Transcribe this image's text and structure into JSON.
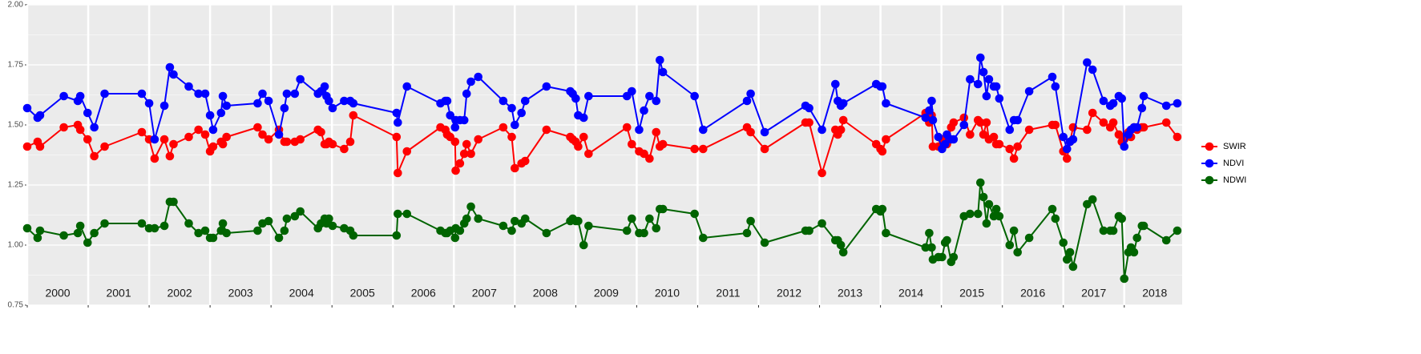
{
  "chart_data": {
    "type": "line",
    "x": [
      2000.0,
      2000.17,
      2000.21,
      2000.6,
      2000.83,
      2000.87,
      2000.99,
      2001.1,
      2001.27,
      2001.88,
      2002.0,
      2002.09,
      2002.25,
      2002.34,
      2002.4,
      2002.65,
      2002.81,
      2002.92,
      2003.0,
      2003.05,
      2003.18,
      2003.21,
      2003.27,
      2003.78,
      2003.86,
      2003.96,
      2004.13,
      2004.22,
      2004.26,
      2004.39,
      2004.48,
      2004.77,
      2004.82,
      2004.88,
      2004.91,
      2004.95,
      2005.01,
      2005.2,
      2005.3,
      2005.35,
      2006.06,
      2006.08,
      2006.23,
      2006.78,
      2006.86,
      2006.89,
      2006.94,
      2007.02,
      2007.03,
      2007.1,
      2007.17,
      2007.21,
      2007.28,
      2007.4,
      2007.81,
      2007.95,
      2008.0,
      2008.11,
      2008.17,
      2008.52,
      2008.91,
      2008.95,
      2009.0,
      2009.04,
      2009.13,
      2009.21,
      2009.84,
      2009.92,
      2010.04,
      2010.12,
      2010.21,
      2010.32,
      2010.38,
      2010.43,
      2010.95,
      2011.09,
      2011.81,
      2011.87,
      2012.1,
      2012.77,
      2012.83,
      2013.04,
      2013.26,
      2013.3,
      2013.35,
      2013.39,
      2013.93,
      2014.0,
      2014.03,
      2014.09,
      2014.74,
      2014.8,
      2014.84,
      2014.86,
      2014.95,
      2015.01,
      2015.06,
      2015.09,
      2015.16,
      2015.2,
      2015.37,
      2015.47,
      2015.6,
      2015.64,
      2015.69,
      2015.74,
      2015.78,
      2015.86,
      2015.9,
      2015.95,
      2016.12,
      2016.19,
      2016.25,
      2016.44,
      2016.82,
      2016.87,
      2017.0,
      2017.06,
      2017.11,
      2017.16,
      2017.39,
      2017.48,
      2017.66,
      2017.77,
      2017.82,
      2017.91,
      2017.96,
      2018.0,
      2018.07,
      2018.11,
      2018.16,
      2018.21,
      2018.29,
      2018.32,
      2018.69,
      2018.87
    ],
    "series": [
      {
        "name": "SWIR",
        "color": "#ff0000",
        "values": [
          1.41,
          1.43,
          1.41,
          1.49,
          1.5,
          1.48,
          1.44,
          1.37,
          1.41,
          1.47,
          1.44,
          1.36,
          1.44,
          1.37,
          1.42,
          1.45,
          1.48,
          1.46,
          1.39,
          1.41,
          1.43,
          1.42,
          1.45,
          1.49,
          1.46,
          1.44,
          1.48,
          1.43,
          1.43,
          1.43,
          1.44,
          1.48,
          1.47,
          1.42,
          1.42,
          1.43,
          1.42,
          1.4,
          1.43,
          1.54,
          1.45,
          1.3,
          1.39,
          1.49,
          1.48,
          1.46,
          1.45,
          1.43,
          1.31,
          1.34,
          1.38,
          1.42,
          1.38,
          1.44,
          1.49,
          1.45,
          1.32,
          1.34,
          1.35,
          1.48,
          1.45,
          1.44,
          1.43,
          1.41,
          1.45,
          1.38,
          1.49,
          1.42,
          1.39,
          1.38,
          1.36,
          1.47,
          1.41,
          1.42,
          1.4,
          1.4,
          1.49,
          1.47,
          1.4,
          1.51,
          1.51,
          1.3,
          1.48,
          1.46,
          1.48,
          1.52,
          1.42,
          1.4,
          1.39,
          1.44,
          1.55,
          1.51,
          1.54,
          1.41,
          1.41,
          1.44,
          1.43,
          1.42,
          1.49,
          1.51,
          1.53,
          1.46,
          1.52,
          1.51,
          1.46,
          1.51,
          1.44,
          1.45,
          1.42,
          1.42,
          1.4,
          1.36,
          1.41,
          1.48,
          1.5,
          1.5,
          1.39,
          1.36,
          1.43,
          1.49,
          1.48,
          1.55,
          1.51,
          1.49,
          1.51,
          1.46,
          1.43,
          1.44,
          1.47,
          1.45,
          1.49,
          1.48,
          1.49,
          1.49,
          1.51,
          1.45
        ]
      },
      {
        "name": "NDVI",
        "color": "#0000ff",
        "values": [
          1.57,
          1.53,
          1.54,
          1.62,
          1.6,
          1.62,
          1.55,
          1.49,
          1.63,
          1.63,
          1.59,
          1.44,
          1.58,
          1.74,
          1.71,
          1.66,
          1.63,
          1.63,
          1.54,
          1.48,
          1.55,
          1.62,
          1.58,
          1.59,
          1.63,
          1.6,
          1.46,
          1.57,
          1.63,
          1.63,
          1.69,
          1.63,
          1.64,
          1.66,
          1.62,
          1.6,
          1.57,
          1.6,
          1.6,
          1.59,
          1.55,
          1.51,
          1.66,
          1.59,
          1.6,
          1.6,
          1.54,
          1.49,
          1.52,
          1.52,
          1.52,
          1.63,
          1.68,
          1.7,
          1.6,
          1.57,
          1.5,
          1.55,
          1.6,
          1.66,
          1.64,
          1.63,
          1.61,
          1.54,
          1.53,
          1.62,
          1.62,
          1.64,
          1.48,
          1.56,
          1.62,
          1.6,
          1.77,
          1.72,
          1.62,
          1.48,
          1.6,
          1.63,
          1.47,
          1.58,
          1.57,
          1.48,
          1.67,
          1.6,
          1.58,
          1.59,
          1.67,
          1.66,
          1.66,
          1.59,
          1.53,
          1.56,
          1.6,
          1.52,
          1.45,
          1.4,
          1.42,
          1.46,
          1.44,
          1.44,
          1.5,
          1.69,
          1.67,
          1.78,
          1.72,
          1.62,
          1.69,
          1.66,
          1.66,
          1.61,
          1.48,
          1.52,
          1.52,
          1.64,
          1.7,
          1.66,
          1.45,
          1.4,
          1.43,
          1.44,
          1.76,
          1.73,
          1.6,
          1.58,
          1.59,
          1.62,
          1.61,
          1.41,
          1.46,
          1.48,
          1.49,
          1.49,
          1.57,
          1.62,
          1.58,
          1.59
        ]
      },
      {
        "name": "NDWI",
        "color": "#006400",
        "values": [
          1.07,
          1.03,
          1.06,
          1.04,
          1.05,
          1.08,
          1.01,
          1.05,
          1.09,
          1.09,
          1.07,
          1.07,
          1.08,
          1.18,
          1.18,
          1.09,
          1.05,
          1.06,
          1.03,
          1.03,
          1.06,
          1.09,
          1.05,
          1.06,
          1.09,
          1.1,
          1.03,
          1.06,
          1.11,
          1.12,
          1.14,
          1.07,
          1.09,
          1.11,
          1.09,
          1.11,
          1.08,
          1.07,
          1.06,
          1.04,
          1.04,
          1.13,
          1.13,
          1.06,
          1.05,
          1.05,
          1.06,
          1.03,
          1.07,
          1.06,
          1.09,
          1.11,
          1.16,
          1.11,
          1.08,
          1.06,
          1.1,
          1.09,
          1.11,
          1.05,
          1.1,
          1.11,
          1.1,
          1.1,
          1.0,
          1.08,
          1.06,
          1.11,
          1.05,
          1.05,
          1.11,
          1.07,
          1.15,
          1.15,
          1.13,
          1.03,
          1.05,
          1.1,
          1.01,
          1.06,
          1.06,
          1.09,
          1.02,
          1.02,
          1.0,
          0.97,
          1.15,
          1.14,
          1.15,
          1.05,
          0.99,
          1.05,
          0.99,
          0.94,
          0.95,
          0.95,
          1.01,
          1.02,
          0.93,
          0.95,
          1.12,
          1.13,
          1.13,
          1.26,
          1.2,
          1.09,
          1.17,
          1.12,
          1.15,
          1.12,
          1.0,
          1.06,
          0.97,
          1.03,
          1.15,
          1.11,
          1.01,
          0.94,
          0.97,
          0.91,
          1.17,
          1.19,
          1.06,
          1.06,
          1.06,
          1.12,
          1.11,
          0.86,
          0.97,
          0.99,
          0.97,
          1.03,
          1.08,
          1.08,
          1.02,
          1.06
        ]
      }
    ],
    "xlim": [
      2000,
      2018.95
    ],
    "xticks": [
      2000,
      2001,
      2002,
      2003,
      2004,
      2005,
      2006,
      2007,
      2008,
      2009,
      2010,
      2011,
      2012,
      2013,
      2014,
      2015,
      2016,
      2017,
      2018
    ],
    "ylim": [
      0.75,
      2.0
    ],
    "yticks": [
      {
        "value": 0.75,
        "label": "0.75"
      },
      {
        "value": 1.0,
        "label": "1.00"
      },
      {
        "value": 1.25,
        "label": "1.25"
      },
      {
        "value": 1.5,
        "label": "1.50"
      },
      {
        "value": 1.75,
        "label": "1.75"
      },
      {
        "value": 2.0,
        "label": "2.00"
      }
    ],
    "grid": true,
    "legend": "right"
  }
}
